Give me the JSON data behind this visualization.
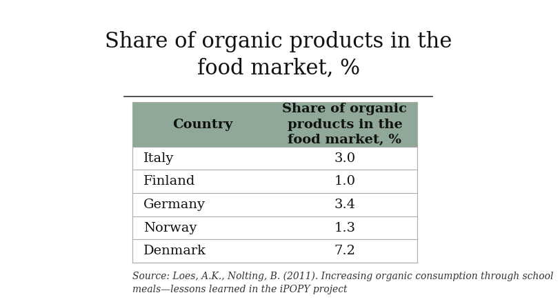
{
  "title_line1": "Share of organic products in the",
  "title_line2": "food market, %",
  "col_header1": "Country",
  "col_header2": "Share of organic\nproducts in the\nfood market, %",
  "rows": [
    [
      "Italy",
      "3.0"
    ],
    [
      "Finland",
      "1.0"
    ],
    [
      "Germany",
      "3.4"
    ],
    [
      "Norway",
      "1.3"
    ],
    [
      "Denmark",
      "7.2"
    ]
  ],
  "header_bg": "#8FA898",
  "separator_color": "#AAAAAA",
  "source_text": "Source: Loes, A.K., Nolting, B. (2011). Increasing organic consumption through school\nmeals—lessons learned in the iPOPY project",
  "background_color": "#FFFFFF",
  "title_fontsize": 22,
  "table_fontsize": 14,
  "source_fontsize": 10,
  "decoration_colors": [
    "#4A5E8A",
    "#6B3A7D",
    "#3D7A6B"
  ],
  "line_color": "#333333"
}
